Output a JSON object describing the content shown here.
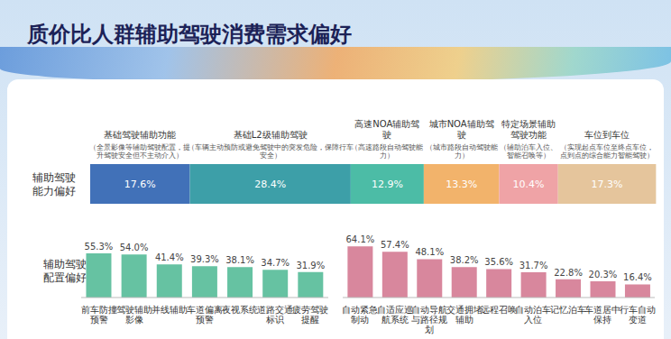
{
  "title": "质价比人群辅助驾驶消费需求偏好",
  "chart_data": [
    {
      "type": "bar",
      "orientation": "horizontal",
      "stacked": true,
      "data_labels": true,
      "tick_labels": false,
      "categories": [
        "辅助驾驶能力偏好"
      ],
      "xlim": [
        0,
        100
      ],
      "series": [
        {
          "name": "基础驾驶辅助功能",
          "color": "#4171b8",
          "values": [
            17.6
          ],
          "value_labels": [
            "17.6%"
          ]
        },
        {
          "name": "基础L2级辅助驾驶",
          "color": "#3d9fa8",
          "values": [
            28.4
          ],
          "value_labels": [
            "28.4%"
          ]
        },
        {
          "name": "高速NOA辅助驾驶",
          "color": "#4cbca6",
          "values": [
            12.9
          ],
          "value_labels": [
            "12.9%"
          ]
        },
        {
          "name": "城市NOA辅助驾驶",
          "color": "#f2b36b",
          "values": [
            13.3
          ],
          "value_labels": [
            "13.3%"
          ]
        },
        {
          "name": "特定场景辅助驾驶功能",
          "color": "#efa3a6",
          "values": [
            10.4
          ],
          "value_labels": [
            "10.4%"
          ]
        },
        {
          "name": "车位到车位",
          "color": "#e5c59c",
          "values": [
            17.3
          ],
          "value_labels": [
            "17.3%"
          ]
        }
      ],
      "annotations": [
        "（全景影像等辅助驾驶配置，提升驾驶安全但不主动介入）",
        "（车辆主动预防或避免驾驶中的突发危险，保障行车安全）",
        "（高速路段自动驾驶能力）",
        "（城市路段自动驾驶能力）",
        "（辅助泊车入位、智能召唤等）",
        "（实现起点车位至终点车位，点到点的综合能力智能驾驶）"
      ]
    },
    {
      "type": "bar",
      "y_label": "辅助驾驶配置偏好",
      "data_labels": true,
      "tick_labels": "x",
      "color": "#66c2a2",
      "ylim": [
        0,
        70
      ],
      "categories": [
        "前车防撞预警",
        "驾驶辅助影像",
        "并线辅助",
        "车道偏离预警",
        "夜视系统",
        "道路交通标识",
        "疲劳驾驶提醒"
      ],
      "values": [
        55.3,
        54.0,
        41.4,
        39.3,
        38.1,
        34.7,
        31.9
      ],
      "value_labels": [
        "55.3%",
        "54.0%",
        "41.4%",
        "39.3%",
        "38.1%",
        "34.7%",
        "31.9%"
      ]
    },
    {
      "type": "bar",
      "data_labels": true,
      "tick_labels": "x",
      "color": "#d8879d",
      "ylim": [
        0,
        70
      ],
      "categories": [
        "自动紧急制动",
        "自适应巡航系统",
        "自动导航与路径规划",
        "交通拥堵辅助",
        "远程召唤",
        "自动泊车入位",
        "记忆泊车",
        "车道居中保持",
        "行车自动变道"
      ],
      "values": [
        64.1,
        57.4,
        48.1,
        38.2,
        35.6,
        31.7,
        22.8,
        20.3,
        16.4
      ],
      "value_labels": [
        "64.1%",
        "57.4%",
        "48.1%",
        "38.2%",
        "35.6%",
        "31.7%",
        "22.8%",
        "20.3%",
        "16.4%"
      ]
    }
  ]
}
